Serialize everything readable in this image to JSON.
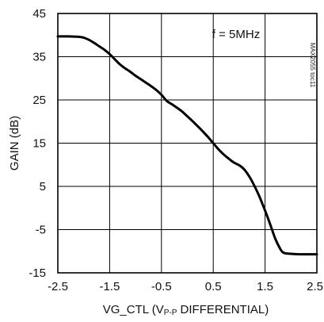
{
  "chart_data": {
    "type": "line",
    "title": "",
    "xlabel_main": "VG_CTL (V",
    "xlabel_sub": "P-P",
    "xlabel_tail": " DIFFERENTIAL)",
    "ylabel": "GAIN (dB)",
    "xlim": [
      -2.5,
      2.5
    ],
    "ylim": [
      -15,
      45
    ],
    "xticks": [
      -2.5,
      -1.5,
      -0.5,
      0.5,
      1.5,
      2.5
    ],
    "yticks": [
      -15,
      -5,
      5,
      15,
      25,
      35,
      45
    ],
    "xtick_labels": [
      "-2.5",
      "-1.5",
      "-0.5",
      "0.5",
      "1.5",
      "2.5"
    ],
    "ytick_labels": [
      "-15",
      "-5",
      "5",
      "15",
      "25",
      "35",
      "45"
    ],
    "grid": true,
    "annotation": "f = 5MHz",
    "figure_ref": "MAX2055 toc11",
    "series": [
      {
        "color": "#000000",
        "x": [
          -2.5,
          -2.3,
          -2.1,
          -2.0,
          -1.9,
          -1.8,
          -1.7,
          -1.6,
          -1.5,
          -1.4,
          -1.3,
          -1.2,
          -1.1,
          -1.0,
          -0.9,
          -0.8,
          -0.7,
          -0.6,
          -0.5,
          -0.4,
          -0.3,
          -0.2,
          -0.1,
          0.0,
          0.1,
          0.2,
          0.3,
          0.4,
          0.5,
          0.6,
          0.7,
          0.8,
          0.9,
          1.0,
          1.1,
          1.2,
          1.3,
          1.4,
          1.5,
          1.6,
          1.7,
          1.8,
          1.85,
          1.9,
          2.0,
          2.2,
          2.5
        ],
        "y": [
          39.7,
          39.7,
          39.6,
          39.4,
          38.9,
          38.2,
          37.4,
          36.6,
          35.6,
          34.4,
          33.2,
          32.3,
          31.5,
          30.6,
          29.8,
          29.0,
          28.2,
          27.3,
          26.2,
          24.8,
          24.0,
          23.2,
          22.3,
          21.2,
          20.1,
          18.9,
          17.7,
          16.4,
          15.0,
          13.6,
          12.4,
          11.4,
          10.5,
          9.9,
          8.9,
          7.2,
          5.0,
          2.4,
          -0.6,
          -3.8,
          -7.2,
          -9.6,
          -10.3,
          -10.5,
          -10.6,
          -10.7,
          -10.7
        ]
      }
    ]
  }
}
